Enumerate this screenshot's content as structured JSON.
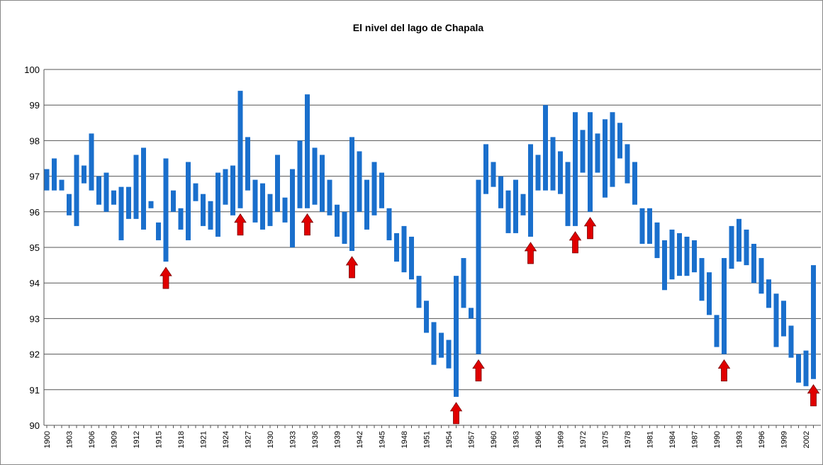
{
  "chart_data": {
    "type": "floating-bar",
    "title": "El nivel del lago de Chapala",
    "categories": [
      "1900",
      null,
      null,
      "1903",
      null,
      null,
      "1906",
      null,
      null,
      "1909",
      null,
      null,
      "1912",
      null,
      null,
      "1915",
      null,
      null,
      "1918",
      null,
      null,
      "1921",
      null,
      null,
      "1924",
      null,
      null,
      "1927",
      null,
      null,
      "1930",
      null,
      null,
      "1933",
      null,
      null,
      "1936",
      null,
      null,
      "1939",
      null,
      null,
      "1942",
      null,
      null,
      "1945",
      null,
      null,
      "1948",
      null,
      null,
      "1951",
      null,
      null,
      "1954",
      null,
      null,
      "1957",
      null,
      null,
      "1960",
      null,
      null,
      "1963",
      null,
      null,
      "1966",
      null,
      null,
      "1969",
      null,
      null,
      "1972",
      null,
      null,
      "1975",
      null,
      null,
      "1978",
      null,
      null,
      "1981",
      null,
      null,
      "1984",
      null,
      null,
      "1987",
      null,
      null,
      "1990",
      null,
      null,
      "1993",
      null,
      null,
      "1996",
      null,
      null,
      "1999",
      null,
      null,
      "2002",
      null
    ],
    "low": [
      96.6,
      96.6,
      96.6,
      95.9,
      95.6,
      96.8,
      96.6,
      96.2,
      96.0,
      96.2,
      95.2,
      95.8,
      95.8,
      95.5,
      96.1,
      95.2,
      94.6,
      96.0,
      95.5,
      95.2,
      96.3,
      95.6,
      95.5,
      95.3,
      96.2,
      95.9,
      96.1,
      96.6,
      95.7,
      95.5,
      95.6,
      96.0,
      95.7,
      95.0,
      96.1,
      96.1,
      96.2,
      96.0,
      95.9,
      95.3,
      95.1,
      94.9,
      96.0,
      95.5,
      95.9,
      96.1,
      95.2,
      94.6,
      94.3,
      94.1,
      93.3,
      92.6,
      91.7,
      91.9,
      91.6,
      90.8,
      93.3,
      93.0,
      92.0,
      96.5,
      96.7,
      96.1,
      95.4,
      95.4,
      95.9,
      95.3,
      96.6,
      96.6,
      96.6,
      96.5,
      95.6,
      95.6,
      97.1,
      96.0,
      97.1,
      96.4,
      96.7,
      97.5,
      96.8,
      96.2,
      95.1,
      95.1,
      94.7,
      93.8,
      94.1,
      94.2,
      94.2,
      94.3,
      93.5,
      93.1,
      92.2,
      92.0,
      94.4,
      94.6,
      94.5,
      94.0,
      93.7,
      93.3,
      92.2,
      92.5,
      91.9,
      91.2,
      91.1,
      91.3
    ],
    "high": [
      97.2,
      97.5,
      96.9,
      96.5,
      97.6,
      97.3,
      98.2,
      97.0,
      97.1,
      96.6,
      96.7,
      96.7,
      97.6,
      97.8,
      96.3,
      95.7,
      97.5,
      96.6,
      96.1,
      97.4,
      96.8,
      96.5,
      96.3,
      97.1,
      97.2,
      97.3,
      99.4,
      98.1,
      96.9,
      96.8,
      96.5,
      97.6,
      96.4,
      97.2,
      98.0,
      99.3,
      97.8,
      97.6,
      96.9,
      96.2,
      96.0,
      98.1,
      97.7,
      96.9,
      97.4,
      97.1,
      96.1,
      95.4,
      95.6,
      95.3,
      94.2,
      93.5,
      92.9,
      92.6,
      92.4,
      94.2,
      94.7,
      93.3,
      96.9,
      97.9,
      97.4,
      97.0,
      96.6,
      96.9,
      96.5,
      97.9,
      97.6,
      99.0,
      98.1,
      97.7,
      97.4,
      98.8,
      98.3,
      98.8,
      98.2,
      98.6,
      98.8,
      98.5,
      97.9,
      97.4,
      96.1,
      96.1,
      95.7,
      95.2,
      95.5,
      95.4,
      95.3,
      95.2,
      94.7,
      94.3,
      93.1,
      94.7,
      95.6,
      95.8,
      95.5,
      95.1,
      94.7,
      94.1,
      93.7,
      93.5,
      92.8,
      92.0,
      92.1,
      94.5
    ],
    "color": "#1a6fcc",
    "arrows": [
      1916,
      1926,
      1935,
      1941,
      1955,
      1958,
      1965,
      1971,
      1973,
      1991,
      2003
    ],
    "arrow_color": "#e00000",
    "first_year": 1900,
    "ylim": [
      90,
      100
    ],
    "yticks": [
      90,
      91,
      92,
      93,
      94,
      95,
      96,
      97,
      98,
      99,
      100
    ],
    "grid": true
  }
}
